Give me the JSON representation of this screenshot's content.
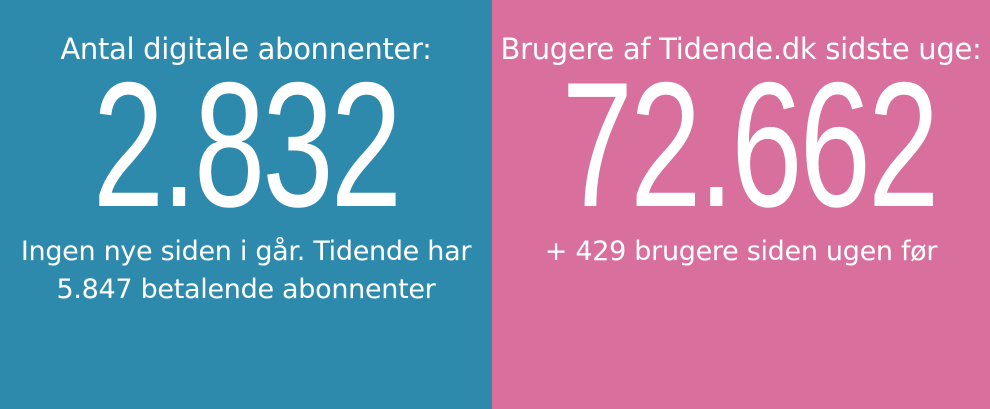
{
  "left_panel": {
    "title": "Antal digitale abonnenter:",
    "value": "2.832",
    "subtitle_line1": "Ingen nye siden i går. Tidende har",
    "subtitle_line2": "5.847 betalende abonnenter",
    "background_color": "#2e8aad"
  },
  "right_panel": {
    "title": "Brugere af Tidende.dk sidste uge:",
    "value": "72.662",
    "subtitle_line1": "+ 429 brugere siden ugen før",
    "background_color": "#d96f9c"
  }
}
